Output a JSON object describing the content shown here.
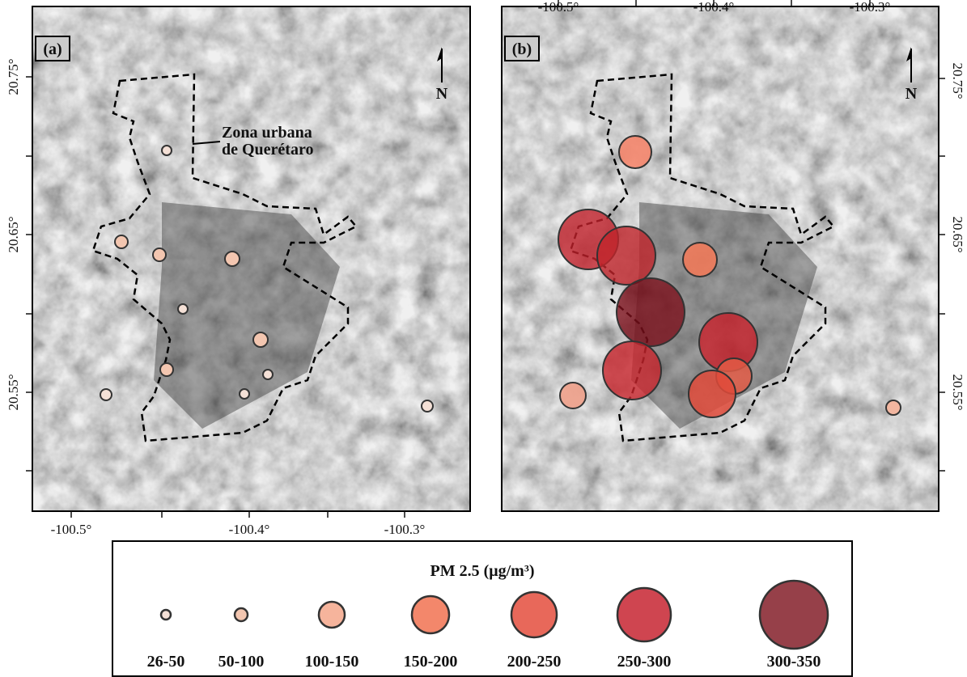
{
  "panel_a": {
    "label": "(a)",
    "north": "N",
    "annotation": [
      "Zona urbana",
      "de Querétaro"
    ],
    "x_ticks": [
      "-100.5°",
      "-100.4°",
      "-100.3°"
    ],
    "y_ticks": [
      "20.75°",
      "20.65°",
      "20.55°"
    ]
  },
  "panel_b": {
    "label": "(b)",
    "north": "N",
    "x_ticks": [
      "-100.5°",
      "-100.4°",
      "-100.3°"
    ],
    "y_ticks": [
      "20.75°",
      "20.65°",
      "20.55°"
    ]
  },
  "legend": {
    "title": "PM 2.5 (μg/m³)",
    "classes": [
      "26-50",
      "50-100",
      "100-150",
      "150-200",
      "200-250",
      "250-300",
      "300-350"
    ]
  }
}
